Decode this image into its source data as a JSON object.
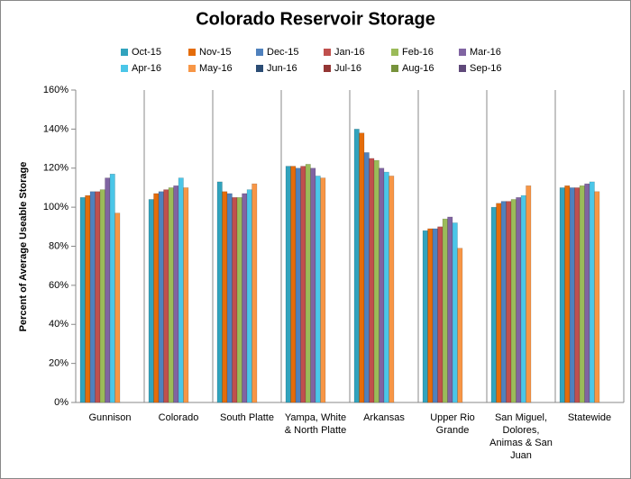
{
  "chart_data": {
    "type": "bar",
    "title": "Colorado Reservoir Storage",
    "y_label": "Percent of Average Useable Storage",
    "categories": [
      "Gunnison",
      "Colorado",
      "South Platte",
      "Yampa, White & North Platte",
      "Arkansas",
      "Upper Rio Grande",
      "San Miguel, Dolores, Animas & San Juan",
      "Statewide"
    ],
    "series": [
      {
        "name": "Oct-15",
        "color": "#31a3bd",
        "values": [
          105,
          104,
          113,
          121,
          140,
          88,
          100,
          110
        ]
      },
      {
        "name": "Nov-15",
        "color": "#e46c0a",
        "values": [
          106,
          107,
          108,
          121,
          138,
          89,
          102,
          111
        ]
      },
      {
        "name": "Dec-15",
        "color": "#4f81bd",
        "values": [
          108,
          108,
          107,
          120,
          128,
          89,
          103,
          110
        ]
      },
      {
        "name": "Jan-16",
        "color": "#c0504d",
        "values": [
          108,
          109,
          105,
          121,
          125,
          90,
          103,
          110
        ]
      },
      {
        "name": "Feb-16",
        "color": "#9bbb59",
        "values": [
          109,
          110,
          105,
          122,
          124,
          94,
          104,
          111
        ]
      },
      {
        "name": "Mar-16",
        "color": "#8064a2",
        "values": [
          115,
          111,
          107,
          120,
          120,
          95,
          105,
          112
        ]
      },
      {
        "name": "Apr-16",
        "color": "#4bc6e8",
        "values": [
          117,
          115,
          109,
          116,
          118,
          92,
          106,
          113
        ]
      },
      {
        "name": "May-16",
        "color": "#f79646",
        "values": [
          97,
          110,
          112,
          115,
          116,
          79,
          111,
          108
        ]
      },
      {
        "name": "Jun-16",
        "color": "#2c4d75",
        "values": [
          null,
          null,
          null,
          null,
          null,
          null,
          null,
          null
        ]
      },
      {
        "name": "Jul-16",
        "color": "#943634",
        "values": [
          null,
          null,
          null,
          null,
          null,
          null,
          null,
          null
        ]
      },
      {
        "name": "Aug-16",
        "color": "#77933c",
        "values": [
          null,
          null,
          null,
          null,
          null,
          null,
          null,
          null
        ]
      },
      {
        "name": "Sep-16",
        "color": "#5f497a",
        "values": [
          null,
          null,
          null,
          null,
          null,
          null,
          null,
          null
        ]
      }
    ],
    "ylim": [
      0,
      160
    ],
    "yticks": [
      {
        "value": 0,
        "label": "0%"
      },
      {
        "value": 20,
        "label": "20%"
      },
      {
        "value": 40,
        "label": "40%"
      },
      {
        "value": 60,
        "label": "60%"
      },
      {
        "value": 80,
        "label": "80%"
      },
      {
        "value": 100,
        "label": "100%"
      },
      {
        "value": 120,
        "label": "120%"
      },
      {
        "value": 140,
        "label": "140%"
      },
      {
        "value": 160,
        "label": "160%"
      }
    ],
    "grid": "categories"
  }
}
